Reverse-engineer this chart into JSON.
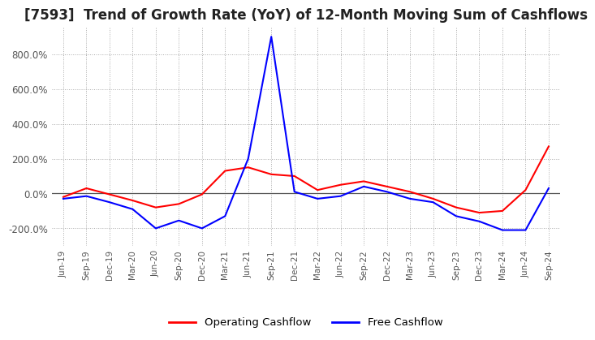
{
  "title": "[7593]  Trend of Growth Rate (YoY) of 12-Month Moving Sum of Cashflows",
  "title_fontsize": 12,
  "ylim": [
    -300,
    950
  ],
  "yticks": [
    -200,
    0,
    200,
    400,
    600,
    800
  ],
  "ytick_labels": [
    "-200.0%",
    "0.0%",
    "200.0%",
    "400.0%",
    "600.0%",
    "800.0%"
  ],
  "background_color": "#ffffff",
  "grid_color": "#aaaaaa",
  "operating_color": "#ff0000",
  "free_color": "#0000ff",
  "x_labels": [
    "Jun-19",
    "Sep-19",
    "Dec-19",
    "Mar-20",
    "Jun-20",
    "Sep-20",
    "Dec-20",
    "Mar-21",
    "Jun-21",
    "Sep-21",
    "Dec-21",
    "Mar-22",
    "Jun-22",
    "Sep-22",
    "Dec-22",
    "Mar-23",
    "Jun-23",
    "Sep-23",
    "Dec-23",
    "Mar-24",
    "Jun-24",
    "Sep-24"
  ],
  "operating_cashflow": [
    -20,
    30,
    -5,
    -40,
    -80,
    -60,
    -5,
    130,
    150,
    110,
    100,
    20,
    50,
    70,
    40,
    10,
    -30,
    -80,
    -110,
    -100,
    20,
    270
  ],
  "free_cashflow": [
    -30,
    -15,
    -50,
    -90,
    -200,
    -155,
    -200,
    -130,
    200,
    900,
    10,
    -30,
    -15,
    40,
    10,
    -30,
    -50,
    -130,
    -160,
    -210,
    -210,
    30
  ]
}
